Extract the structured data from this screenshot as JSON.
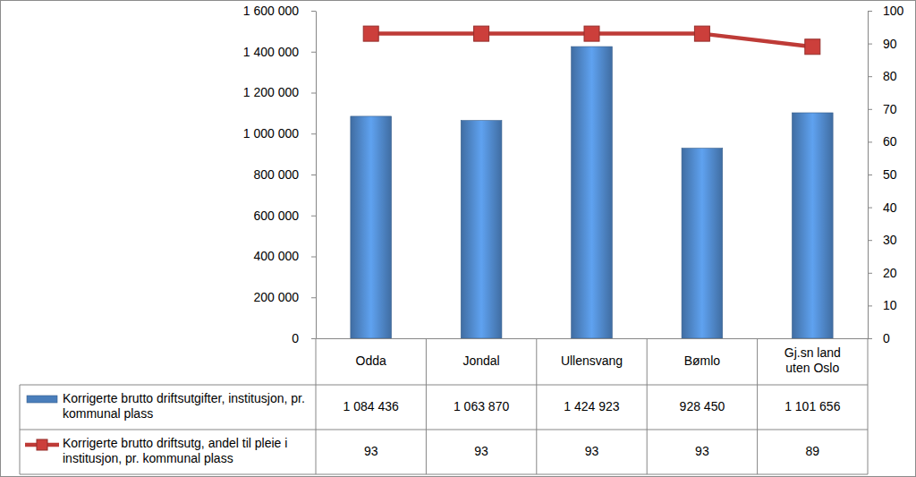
{
  "chart_data": {
    "type": "bar",
    "categories": [
      "Odda",
      "Jondal",
      "Ullensvang",
      "Bømlo",
      "Gj.sn land uten Oslo"
    ],
    "series": [
      {
        "name": "Korrigerte brutto driftsutgifter, institusjon, pr. kommunal plass",
        "type": "bar",
        "color": "#4a7ebb",
        "values": [
          1084436,
          1063870,
          1424923,
          928450,
          1101656
        ],
        "value_labels": [
          "1 084 436",
          "1 063 870",
          "1 424 923",
          "928 450",
          "1 101 656"
        ]
      },
      {
        "name": "Korrigerte brutto driftsutg, andel til pleie i institusjon, pr. kommunal plass",
        "type": "line",
        "color": "#be3b37",
        "marker": "square",
        "axis": "y2",
        "values": [
          93,
          93,
          93,
          93,
          89
        ]
      }
    ],
    "ylim": [
      0,
      1600000
    ],
    "yticks": [
      0,
      {
        "value": 200000,
        "label": "200 000"
      },
      {
        "value": 400000,
        "label": "400 000"
      },
      {
        "value": 600000,
        "label": "600 000"
      },
      {
        "value": 800000,
        "label": "800 000"
      },
      {
        "value": 1000000,
        "label": "1 000 000"
      },
      {
        "value": 1200000,
        "label": "1 200 000"
      },
      {
        "value": 1400000,
        "label": "1 400 000"
      },
      {
        "value": 1600000,
        "label": "1 600 000"
      }
    ],
    "y2lim": [
      0,
      100
    ],
    "y2ticks": [
      0,
      10,
      20,
      30,
      40,
      50,
      60,
      70,
      80,
      90,
      100
    ]
  }
}
